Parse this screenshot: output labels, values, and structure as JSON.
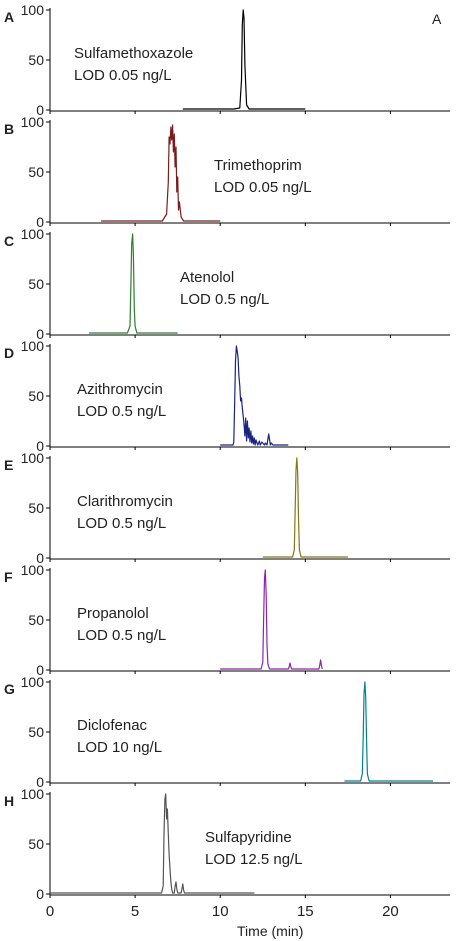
{
  "chart_data": [
    {
      "type": "line",
      "panel_label": "A",
      "figure_tag": "A",
      "annotation": [
        "Sulfamethoxazole",
        "LOD 0.05 ng/L"
      ],
      "color": "#000000",
      "ylim": [
        0,
        100
      ],
      "yticks": [
        "0",
        "50",
        "100"
      ],
      "xlim": [
        0,
        23.5
      ],
      "series": [
        {
          "x": [
            7.8,
            10.8,
            11.15,
            11.25,
            11.3,
            11.35,
            11.4,
            11.45,
            11.55,
            11.7,
            12.5,
            15.0
          ],
          "y": [
            1,
            1,
            2,
            30,
            85,
            100,
            92,
            45,
            5,
            1,
            1,
            1
          ]
        }
      ]
    },
    {
      "type": "line",
      "panel_label": "B",
      "annotation": [
        "Trimethoprim",
        "LOD 0.05 ng/L"
      ],
      "color": "#7a1c1c",
      "ylim": [
        0,
        100
      ],
      "yticks": [
        "0",
        "50",
        "100"
      ],
      "xlim": [
        0,
        23.5
      ],
      "series": [
        {
          "x": [
            3.0,
            6.6,
            6.85,
            6.95,
            7.0,
            7.05,
            7.1,
            7.15,
            7.2,
            7.25,
            7.3,
            7.35,
            7.4,
            7.45,
            7.5,
            7.55,
            7.6,
            7.7,
            7.85,
            10.0
          ],
          "y": [
            1,
            1,
            8,
            40,
            85,
            78,
            95,
            82,
            97,
            70,
            88,
            55,
            75,
            30,
            45,
            12,
            20,
            5,
            1,
            1
          ]
        }
      ]
    },
    {
      "type": "line",
      "panel_label": "C",
      "annotation": [
        "Atenolol",
        "LOD  0.5 ng/L"
      ],
      "color": "#2e7d32",
      "ylim": [
        0,
        100
      ],
      "yticks": [
        "0",
        "50",
        "100"
      ],
      "xlim": [
        0,
        23.5
      ],
      "series": [
        {
          "x": [
            2.3,
            4.55,
            4.7,
            4.75,
            4.8,
            4.85,
            4.9,
            4.95,
            5.0,
            5.1,
            7.5
          ],
          "y": [
            1,
            1,
            8,
            50,
            90,
            100,
            80,
            25,
            8,
            1,
            1
          ]
        }
      ]
    },
    {
      "type": "line",
      "panel_label": "D",
      "annotation": [
        "Azithromycin",
        "LOD 0.5 ng/L"
      ],
      "color": "#1a237e",
      "ylim": [
        0,
        100
      ],
      "yticks": [
        "0",
        "50",
        "100"
      ],
      "xlim": [
        0,
        23.5
      ],
      "series": [
        {
          "x": [
            10.0,
            10.75,
            10.8,
            10.85,
            10.9,
            10.95,
            11.0,
            11.05,
            11.1,
            11.15,
            11.2,
            11.25,
            11.3,
            11.35,
            11.4,
            11.45,
            11.5,
            11.55,
            11.6,
            11.65,
            11.7,
            11.75,
            11.8,
            11.85,
            11.9,
            11.95,
            12.0,
            12.05,
            12.1,
            12.2,
            12.3,
            12.35,
            12.45,
            12.6,
            12.65,
            12.75,
            12.85,
            12.95,
            13.0,
            13.1,
            13.2,
            14.0
          ],
          "y": [
            1,
            1,
            4,
            45,
            85,
            100,
            95,
            88,
            70,
            60,
            45,
            48,
            38,
            30,
            22,
            10,
            28,
            5,
            25,
            8,
            18,
            4,
            15,
            3,
            10,
            2,
            8,
            1,
            6,
            1,
            5,
            1,
            4,
            1,
            3,
            1,
            12,
            1,
            3,
            1,
            1,
            1
          ]
        }
      ]
    },
    {
      "type": "line",
      "panel_label": "E",
      "annotation": [
        "Clarithromycin",
        "LOD 0.5 ng/L"
      ],
      "color": "#827717",
      "ylim": [
        0,
        100
      ],
      "yticks": [
        "0",
        "50",
        "100"
      ],
      "xlim": [
        0,
        23.5
      ],
      "series": [
        {
          "x": [
            12.5,
            14.25,
            14.35,
            14.4,
            14.45,
            14.5,
            14.55,
            14.6,
            14.65,
            14.75,
            17.5
          ],
          "y": [
            1,
            1,
            8,
            45,
            88,
            100,
            85,
            40,
            8,
            1,
            1
          ]
        }
      ]
    },
    {
      "type": "line",
      "panel_label": "F",
      "annotation": [
        "Propanolol",
        "LOD 0.5 ng/L"
      ],
      "color": "#8e24aa",
      "ylim": [
        0,
        100
      ],
      "yticks": [
        "0",
        "50",
        "100"
      ],
      "xlim": [
        0,
        23.5
      ],
      "series": [
        {
          "x": [
            10.0,
            12.4,
            12.5,
            12.55,
            12.6,
            12.65,
            12.7,
            12.75,
            12.8,
            12.9,
            14.0,
            14.05,
            14.1,
            14.15,
            14.2,
            15.8,
            15.85,
            15.9,
            15.95,
            16.0
          ],
          "y": [
            1,
            1,
            8,
            50,
            92,
            100,
            75,
            25,
            6,
            1,
            1,
            3,
            7,
            3,
            1,
            1,
            5,
            10,
            4,
            1
          ]
        }
      ]
    },
    {
      "type": "line",
      "panel_label": "G",
      "annotation": [
        "Diclofenac",
        "LOD 10 ng/L"
      ],
      "color": "#00838f",
      "ylim": [
        0,
        100
      ],
      "yticks": [
        "0",
        "50",
        "100"
      ],
      "xlim": [
        0,
        23.5
      ],
      "series": [
        {
          "x": [
            17.3,
            18.25,
            18.35,
            18.4,
            18.45,
            18.5,
            18.55,
            18.6,
            18.65,
            18.75,
            22.5
          ],
          "y": [
            1,
            1,
            8,
            45,
            88,
            100,
            85,
            40,
            8,
            1,
            1
          ]
        }
      ]
    },
    {
      "type": "line",
      "panel_label": "H",
      "annotation": [
        "Sulfapyridine",
        "LOD 12.5 ng/L"
      ],
      "color": "#555555",
      "ylim": [
        0,
        100
      ],
      "yticks": [
        "0",
        "50",
        "100"
      ],
      "xlim": [
        0,
        23.5
      ],
      "xticks": [
        0,
        5,
        10,
        15,
        20
      ],
      "xlabel": "Time (min)",
      "series": [
        {
          "x": [
            0.0,
            6.55,
            6.65,
            6.7,
            6.75,
            6.8,
            6.85,
            6.9,
            6.95,
            7.0,
            7.05,
            7.1,
            7.15,
            7.2,
            7.3,
            7.35,
            7.4,
            7.45,
            7.5,
            7.7,
            7.75,
            7.8,
            7.85,
            7.9,
            12.0
          ],
          "y": [
            1,
            1,
            8,
            60,
            95,
            100,
            75,
            85,
            60,
            40,
            25,
            12,
            5,
            1,
            1,
            8,
            12,
            5,
            1,
            1,
            5,
            10,
            4,
            1,
            1
          ]
        }
      ]
    }
  ]
}
